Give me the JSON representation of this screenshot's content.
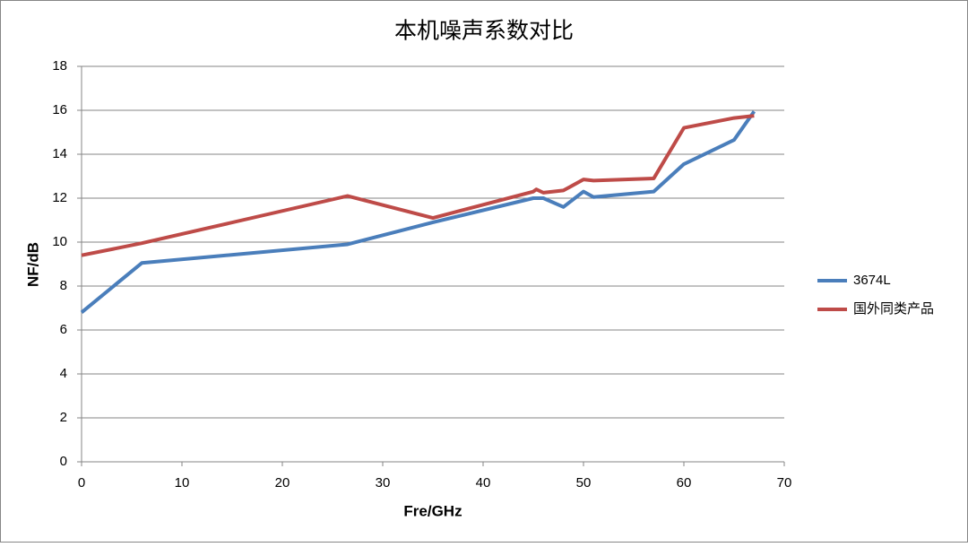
{
  "chart_data": {
    "type": "line",
    "title": "本机噪声系数对比",
    "x_label": "Fre/GHz",
    "y_label": "NF/dB",
    "xlim": [
      0,
      70
    ],
    "xticks": [
      0,
      10,
      20,
      30,
      40,
      50,
      60,
      70
    ],
    "ylim": [
      0,
      18
    ],
    "yticks": [
      0,
      2,
      4,
      6,
      8,
      10,
      12,
      14,
      16,
      18
    ],
    "grid": true,
    "legend": "right",
    "series": [
      {
        "name": "3674L",
        "color": "#4a7ebb",
        "x": [
          0,
          6,
          26.5,
          35,
          45,
          46,
          48,
          50,
          51,
          57,
          60,
          65,
          67
        ],
        "values": [
          6.8,
          9.05,
          9.9,
          10.9,
          12.0,
          12.0,
          11.6,
          12.3,
          12.05,
          12.3,
          13.55,
          14.65,
          15.95
        ]
      },
      {
        "name": "国外同类产品",
        "color": "#be4b48",
        "x": [
          0,
          6,
          26.5,
          35,
          45,
          45.3,
          46,
          48,
          50,
          51,
          57,
          60,
          65,
          67
        ],
        "values": [
          9.4,
          9.95,
          12.1,
          11.1,
          12.3,
          12.4,
          12.25,
          12.35,
          12.85,
          12.8,
          12.9,
          15.2,
          15.65,
          15.75
        ]
      }
    ]
  }
}
